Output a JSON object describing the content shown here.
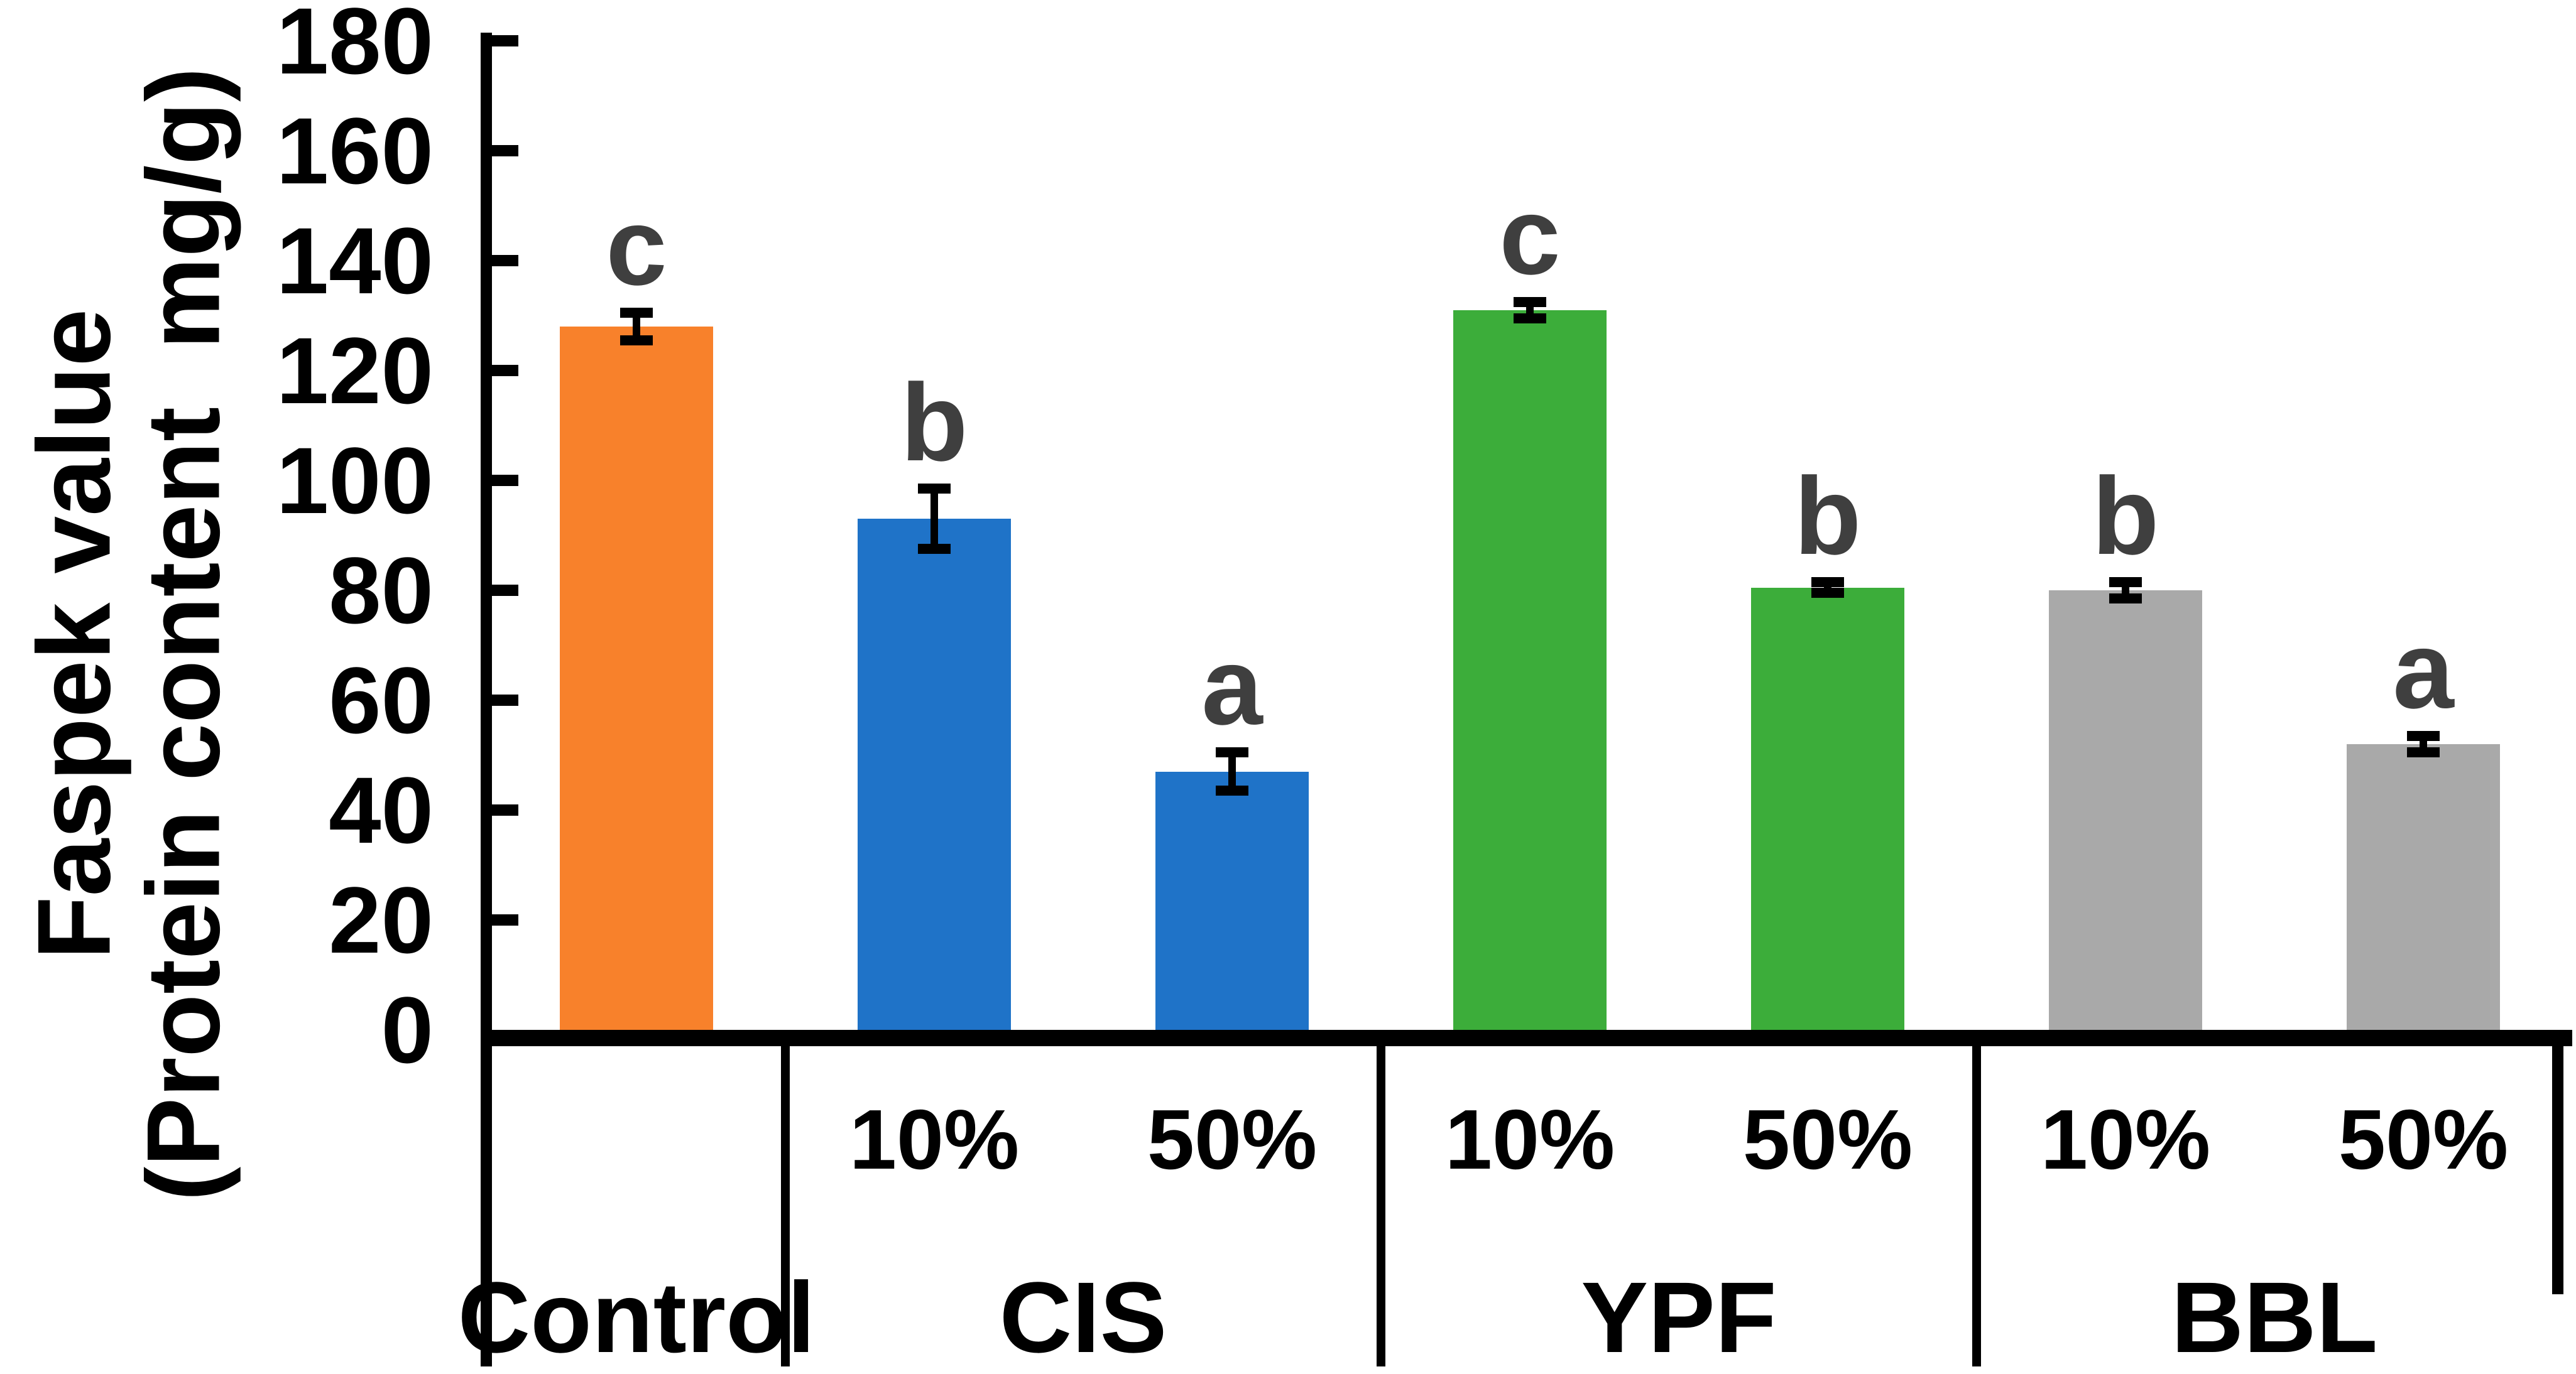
{
  "chart_data": {
    "type": "bar",
    "title": "",
    "xlabel": "",
    "ylabel_line1": "Faspek value",
    "ylabel_line2": "(Protein content  mg/g)",
    "ylim": [
      0,
      180
    ],
    "ytick_step": 20,
    "yticks": [
      0,
      20,
      40,
      60,
      80,
      100,
      120,
      140,
      160,
      180
    ],
    "grid": "off",
    "legend": "none",
    "error_bars": true,
    "groups": [
      {
        "label": "Control",
        "bars": [
          {
            "label": "",
            "value": 128,
            "error": 2.5,
            "letter": "c",
            "color": "#F8812B"
          }
        ]
      },
      {
        "label": "CIS",
        "bars": [
          {
            "label": "10%",
            "value": 93,
            "error": 5.5,
            "letter": "b",
            "color": "#1F73C8"
          },
          {
            "label": "50%",
            "value": 47,
            "error": 3.5,
            "letter": "a",
            "color": "#1F73C8"
          }
        ]
      },
      {
        "label": "YPF",
        "bars": [
          {
            "label": "10%",
            "value": 131,
            "error": 1.5,
            "letter": "c",
            "color": "#3CAD3A"
          },
          {
            "label": "50%",
            "value": 80.5,
            "error": 1.0,
            "letter": "b",
            "color": "#3CAD3A"
          }
        ]
      },
      {
        "label": "BBL",
        "bars": [
          {
            "label": "10%",
            "value": 80,
            "error": 1.5,
            "letter": "b",
            "color": "#A9A9A9"
          },
          {
            "label": "50%",
            "value": 52,
            "error": 1.5,
            "letter": "a",
            "color": "#A9A9A9"
          }
        ]
      }
    ],
    "colors": {
      "axis": "#000000",
      "significance_letter": "#3F3F3F",
      "control_bar": "#F8812B",
      "cis_bars": "#1F73C8",
      "ypf_bars": "#3CAD3A",
      "bbl_bars": "#A9A9A9"
    }
  }
}
